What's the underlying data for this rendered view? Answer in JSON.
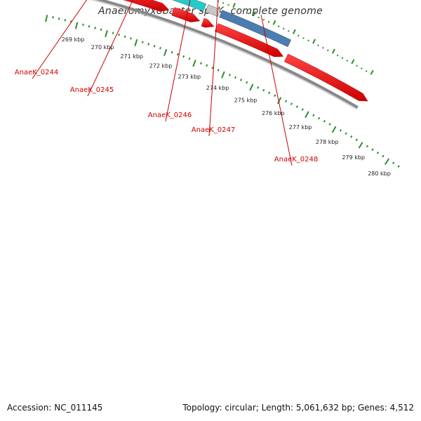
{
  "title": "Anaeromyxobacter sp. K, complete genome",
  "footer": {
    "accession": "Accession: NC_011145",
    "summary": "Topology: circular; Length: 5,061,632 bp; Genes: 4,512"
  },
  "genes": [
    {
      "id": "AnaeK_0244",
      "color": "#777777"
    },
    {
      "id": "AnaeK_0245",
      "color": "#b5b07a"
    },
    {
      "id": "AnaeK_0246",
      "color": "#22cccc"
    },
    {
      "id": "AnaeK_0247",
      "color": "#c8c8c8"
    },
    {
      "id": "AnaeK_0248",
      "color": "#4a7db0"
    }
  ],
  "cds_color": "#ee1111",
  "backbone_color": "#888888",
  "tick_color": "#2e8b2e",
  "scale_labels": [
    "269 kbp",
    "270 kbp",
    "271 kbp",
    "272 kbp",
    "273 kbp",
    "274 kbp",
    "275 kbp",
    "276 kbp",
    "277 kbp",
    "278 kbp",
    "279 kbp",
    "280 kbp"
  ]
}
